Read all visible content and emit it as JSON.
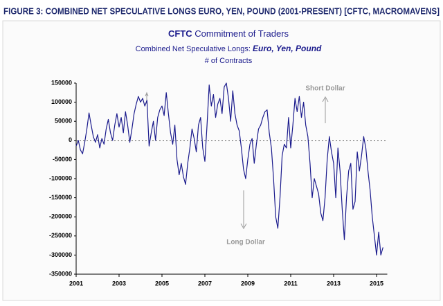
{
  "chart_data": {
    "type": "line",
    "figure_caption": "FIGURE 3: COMBINED NET SPECULATIVE LONGS EURO, YEN, POUND (2001-PRESENT) [CFTC, MACROMAVENS]",
    "title_prefix": "CFTC",
    "title": "Commitment of Traders",
    "subtitle": "Combined Net Speculative Longs:",
    "subtitle_emphasis": "Euro, Yen, Pound",
    "y_label": "# of Contracts",
    "annotations": [
      "Short Dollar",
      "Long Dollar"
    ],
    "xlim": [
      2001,
      2015.5
    ],
    "xticks": [
      2001,
      2003,
      2005,
      2007,
      2009,
      2011,
      2013,
      2015
    ],
    "ylim": [
      -350000,
      150000
    ],
    "yticks": [
      150000,
      100000,
      50000,
      0,
      -50000,
      -100000,
      -150000,
      -200000,
      -250000,
      -300000,
      -350000
    ],
    "zero_line": true,
    "x": [
      2001.0,
      2001.1,
      2001.2,
      2001.3,
      2001.4,
      2001.5,
      2001.6,
      2001.7,
      2001.8,
      2001.9,
      2002.0,
      2002.1,
      2002.2,
      2002.3,
      2002.4,
      2002.5,
      2002.6,
      2002.7,
      2002.8,
      2002.9,
      2003.0,
      2003.1,
      2003.2,
      2003.3,
      2003.4,
      2003.5,
      2003.6,
      2003.7,
      2003.8,
      2003.9,
      2004.0,
      2004.1,
      2004.2,
      2004.3,
      2004.4,
      2004.5,
      2004.6,
      2004.7,
      2004.8,
      2004.9,
      2005.0,
      2005.1,
      2005.2,
      2005.3,
      2005.4,
      2005.5,
      2005.6,
      2005.7,
      2005.8,
      2005.9,
      2006.0,
      2006.1,
      2006.2,
      2006.3,
      2006.4,
      2006.5,
      2006.6,
      2006.7,
      2006.8,
      2006.9,
      2007.0,
      2007.1,
      2007.2,
      2007.3,
      2007.4,
      2007.5,
      2007.6,
      2007.7,
      2007.8,
      2007.9,
      2008.0,
      2008.1,
      2008.2,
      2008.3,
      2008.4,
      2008.5,
      2008.6,
      2008.7,
      2008.8,
      2008.9,
      2009.0,
      2009.1,
      2009.2,
      2009.3,
      2009.4,
      2009.5,
      2009.6,
      2009.7,
      2009.8,
      2009.9,
      2010.0,
      2010.1,
      2010.2,
      2010.3,
      2010.4,
      2010.5,
      2010.6,
      2010.7,
      2010.8,
      2010.9,
      2011.0,
      2011.1,
      2011.2,
      2011.3,
      2011.4,
      2011.5,
      2011.6,
      2011.7,
      2011.8,
      2011.9,
      2012.0,
      2012.1,
      2012.2,
      2012.3,
      2012.4,
      2012.5,
      2012.6,
      2012.7,
      2012.8,
      2012.9,
      2013.0,
      2013.1,
      2013.2,
      2013.3,
      2013.4,
      2013.5,
      2013.6,
      2013.7,
      2013.8,
      2013.9,
      2014.0,
      2014.1,
      2014.2,
      2014.3,
      2014.4,
      2014.5,
      2014.6,
      2014.7,
      2014.8,
      2014.9,
      2015.0,
      2015.1,
      2015.2,
      2015.3
    ],
    "series": [
      {
        "name": "Combined Net Speculative Longs",
        "color": "#1a1a8c",
        "values": [
          -15000,
          0,
          -25000,
          -35000,
          -5000,
          30000,
          72000,
          40000,
          10000,
          -5000,
          15000,
          -20000,
          5000,
          -10000,
          30000,
          55000,
          20000,
          0,
          40000,
          70000,
          35000,
          60000,
          20000,
          75000,
          40000,
          -5000,
          30000,
          70000,
          95000,
          115000,
          100000,
          110000,
          90000,
          105000,
          -15000,
          20000,
          50000,
          0,
          60000,
          80000,
          90000,
          65000,
          125000,
          70000,
          20000,
          -10000,
          40000,
          -50000,
          -90000,
          -60000,
          -95000,
          -115000,
          -60000,
          -20000,
          30000,
          5000,
          -30000,
          40000,
          60000,
          -20000,
          -55000,
          40000,
          145000,
          90000,
          120000,
          60000,
          95000,
          110000,
          70000,
          140000,
          150000,
          110000,
          50000,
          130000,
          70000,
          40000,
          25000,
          -20000,
          -75000,
          -100000,
          -50000,
          -10000,
          5000,
          -60000,
          -10000,
          30000,
          40000,
          60000,
          75000,
          80000,
          20000,
          -20000,
          -100000,
          -200000,
          -230000,
          -150000,
          -40000,
          -10000,
          -20000,
          60000,
          -20000,
          40000,
          110000,
          75000,
          115000,
          60000,
          100000,
          40000,
          10000,
          -60000,
          -150000,
          -100000,
          -120000,
          -140000,
          -190000,
          -210000,
          -150000,
          -50000,
          10000,
          -30000,
          -60000,
          -150000,
          -20000,
          -80000,
          -180000,
          -260000,
          -150000,
          -80000,
          -60000,
          -180000,
          -160000,
          -30000,
          -80000,
          -40000,
          10000,
          -20000,
          -80000,
          -130000,
          -200000,
          -250000,
          -300000,
          -240000,
          -300000,
          -280000
        ]
      }
    ]
  }
}
